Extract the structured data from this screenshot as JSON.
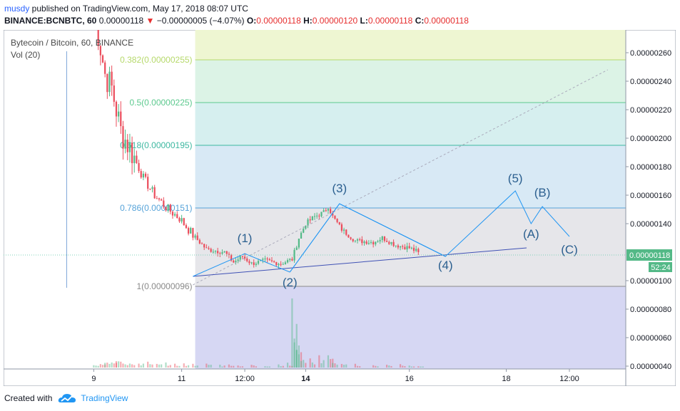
{
  "header": {
    "author": "musdy",
    "published_text": " published on TradingView.com, May 17, 2018 08:07 UTC",
    "symbol": "BINANCE:BCNBTC, 60",
    "last": "0.00000118",
    "arrow": "▼",
    "change": "−0.00000005 (−4.07%)",
    "o_label": "O:",
    "o_val": "0.00000118",
    "h_label": "H:",
    "h_val": "0.00000120",
    "l_label": "L:",
    "l_val": "0.00000118",
    "c_label": "C:",
    "c_val": "0.00000118"
  },
  "footer": {
    "created_with": "Created with",
    "brand": "TradingView"
  },
  "colors": {
    "up": "#53b987",
    "down": "#eb4d5c",
    "wave": "#2196f3",
    "trend": "#3f51b5"
  },
  "chart_data": {
    "type": "candlestick",
    "title": "Bytecoin / Bitcoin, 60, BINANCE",
    "volume_label": "Vol (20)",
    "x_ticks": [
      "9",
      "11",
      "12:00",
      "14",
      "16",
      "18",
      "12:00"
    ],
    "x_tick_index": [
      0,
      39,
      67,
      94,
      140,
      183,
      211
    ],
    "y_ticks": [
      "0.00000260",
      "0.00000240",
      "0.00000220",
      "0.00000200",
      "0.00000180",
      "0.00000160",
      "0.00000140",
      "0.00000100",
      "0.00000080",
      "0.00000060",
      "0.00000040"
    ],
    "y_tick_values": [
      2.6,
      2.4,
      2.2,
      2.0,
      1.8,
      1.6,
      1.4,
      1.0,
      0.8,
      0.6,
      0.4
    ],
    "price_unit": "1e-6 BTC",
    "y_range": [
      0.38,
      2.76
    ],
    "last_price_label": "0.00000118",
    "last_price": 1.18,
    "countdown": "52:24",
    "fib_start_index": 45,
    "fibonacci": [
      {
        "label": "0.382(0.00000255)",
        "level": 2.55,
        "color": "#b6d96b"
      },
      {
        "label": "0.5(0.00000225)",
        "level": 2.25,
        "color": "#5cc98e"
      },
      {
        "label": "0.618(0.00000195)",
        "level": 1.95,
        "color": "#3db8a1"
      },
      {
        "label": "0.786(0.00000151)",
        "level": 1.51,
        "color": "#56a3d9"
      },
      {
        "label": "1(0.00000096)",
        "level": 0.96,
        "color": "#8a8a8a"
      }
    ],
    "fib_zone_colors": [
      "#eef6d2",
      "#dcf3e6",
      "#d6efef",
      "#d8e9f5",
      "#e6e6ea",
      "#d6d7f3"
    ],
    "vertical_marker_index": -12,
    "candles_start": [
      0,
      2.92
    ],
    "candles_segments": [
      [
        5,
        2.45
      ],
      [
        8,
        2.35
      ],
      [
        12,
        2.05
      ],
      [
        17,
        1.9
      ],
      [
        22,
        1.72
      ],
      [
        27,
        1.6
      ],
      [
        33,
        1.5
      ],
      [
        38,
        1.44
      ],
      [
        44,
        1.32
      ],
      [
        50,
        1.22
      ],
      [
        58,
        1.2
      ],
      [
        62,
        1.13
      ],
      [
        66,
        1.17
      ],
      [
        70,
        1.12
      ],
      [
        76,
        1.14
      ],
      [
        83,
        1.12
      ],
      [
        88,
        1.15
      ],
      [
        91,
        1.3
      ],
      [
        94,
        1.4
      ],
      [
        98,
        1.45
      ],
      [
        102,
        1.48
      ],
      [
        104,
        1.52
      ],
      [
        106,
        1.45
      ],
      [
        110,
        1.36
      ],
      [
        116,
        1.28
      ],
      [
        124,
        1.27
      ],
      [
        128,
        1.3
      ],
      [
        134,
        1.25
      ],
      [
        140,
        1.23
      ],
      [
        144,
        1.2
      ]
    ],
    "volumes": [
      [
        0,
        0.05
      ],
      [
        3,
        0.08
      ],
      [
        5,
        0.12
      ],
      [
        8,
        0.1
      ],
      [
        10,
        0.14
      ],
      [
        13,
        0.1
      ],
      [
        16,
        0.08
      ],
      [
        20,
        0.09
      ],
      [
        24,
        0.07
      ],
      [
        28,
        0.08
      ],
      [
        32,
        0.06
      ],
      [
        36,
        0.05
      ],
      [
        40,
        0.05
      ],
      [
        44,
        0.05
      ],
      [
        50,
        0.06
      ],
      [
        56,
        0.04
      ],
      [
        60,
        0.05
      ],
      [
        64,
        0.04
      ],
      [
        70,
        0.05
      ],
      [
        76,
        0.03
      ],
      [
        82,
        0.04
      ],
      [
        86,
        0.06
      ],
      [
        88,
        1.0
      ],
      [
        89,
        0.45
      ],
      [
        90,
        0.3
      ],
      [
        92,
        0.15
      ],
      [
        96,
        0.12
      ],
      [
        100,
        0.16
      ],
      [
        104,
        0.2
      ],
      [
        106,
        0.1
      ],
      [
        110,
        0.08
      ],
      [
        116,
        0.05
      ],
      [
        124,
        0.04
      ],
      [
        130,
        0.05
      ],
      [
        136,
        0.04
      ],
      [
        140,
        0.03
      ],
      [
        144,
        0.02
      ]
    ],
    "waves": [
      {
        "label": "(1)",
        "index": 67,
        "price": 1.19
      },
      {
        "label": "(2)",
        "index": 87,
        "price": 1.06
      },
      {
        "label": "(3)",
        "index": 109,
        "price": 1.54
      },
      {
        "label": "(4)",
        "index": 156,
        "price": 1.17
      },
      {
        "label": "(5)",
        "index": 187,
        "price": 1.63
      },
      {
        "label": "(A)",
        "index": 194,
        "price": 1.4
      },
      {
        "label": "(B)",
        "index": 199,
        "price": 1.52
      },
      {
        "label": "(C)",
        "index": 211,
        "price": 1.31
      }
    ],
    "wave_labels_price": [
      1.27,
      0.96,
      1.62,
      1.08,
      1.69,
      1.3,
      1.59,
      1.19
    ],
    "trend_line": [
      [
        44,
        1.03
      ],
      [
        192,
        1.23
      ]
    ],
    "dotted_line": [
      [
        44,
        0.97
      ],
      [
        228,
        2.48
      ]
    ],
    "small_triangles": [
      [
        [
          44,
          1.03
        ],
        [
          67,
          1.19
        ],
        [
          87,
          1.06
        ]
      ],
      [
        [
          87,
          1.06
        ],
        [
          109,
          1.54
        ],
        [
          156,
          1.17
        ]
      ]
    ]
  }
}
